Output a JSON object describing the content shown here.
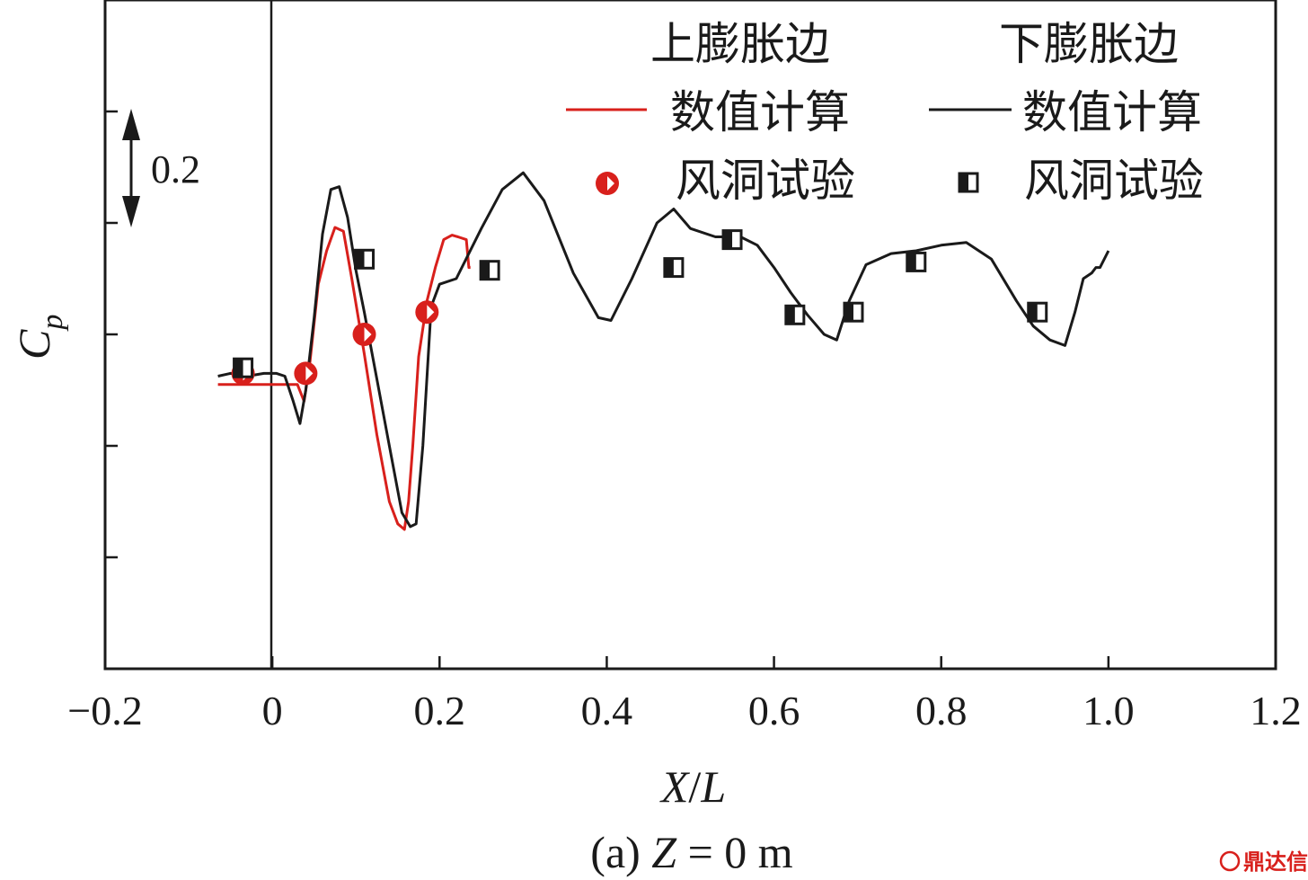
{
  "chart_data": {
    "type": "line",
    "title": "",
    "subtitle_prefix": "(a) ",
    "subtitle_var": "Z",
    "subtitle_suffix": " = 0 m",
    "xlabel_a": "X",
    "xlabel_sep": "/",
    "xlabel_b": "L",
    "ylabel_main": "C",
    "ylabel_sub": "p",
    "xlim": [
      -0.2,
      1.2
    ],
    "ylim": [
      -0.6,
      0.6
    ],
    "x_ticks": [
      -0.2,
      0,
      0.2,
      0.4,
      0.6,
      0.8,
      1.0,
      1.2
    ],
    "x_tick_labels": [
      "−0.2",
      "0",
      "0.2",
      "0.4",
      "0.6",
      "0.8",
      "1.0",
      "1.2"
    ],
    "y_ticks": [
      -0.4,
      -0.2,
      0,
      0.2,
      0.4
    ],
    "scale_bar_label": "0.2",
    "scale_bar_value": 0.2,
    "legend": {
      "upper_title": "上膨胀边",
      "lower_title": "下膨胀边",
      "upper_numeric": "数值计算",
      "lower_numeric": "数值计算",
      "upper_test": "风洞试验",
      "lower_test": "风洞试验"
    },
    "series": [
      {
        "name": "上膨胀边 数值计算",
        "kind": "line",
        "color": "#d8201c",
        "x": [
          -0.065,
          -0.04,
          -0.02,
          0.0,
          0.02,
          0.03,
          0.038,
          0.045,
          0.055,
          0.065,
          0.075,
          0.085,
          0.095,
          0.11,
          0.125,
          0.14,
          0.15,
          0.158,
          0.163,
          0.168,
          0.175,
          0.185,
          0.195,
          0.205,
          0.215,
          0.222,
          0.232,
          0.235,
          0.237
        ],
        "y": [
          -0.09,
          -0.09,
          -0.09,
          -0.09,
          -0.09,
          -0.09,
          -0.12,
          -0.05,
          0.09,
          0.15,
          0.192,
          0.185,
          0.1,
          -0.035,
          -0.18,
          -0.3,
          -0.34,
          -0.35,
          -0.3,
          -0.2,
          -0.04,
          0.06,
          0.12,
          0.17,
          0.178,
          0.175,
          0.17,
          0.12,
          0.12
        ]
      },
      {
        "name": "下膨胀边 数值计算",
        "kind": "line",
        "color": "#1a1a1a",
        "x": [
          -0.065,
          -0.05,
          -0.03,
          -0.01,
          0.005,
          0.015,
          0.025,
          0.033,
          0.04,
          0.05,
          0.06,
          0.07,
          0.08,
          0.09,
          0.1,
          0.11,
          0.125,
          0.14,
          0.155,
          0.165,
          0.172,
          0.18,
          0.19,
          0.2,
          0.22,
          0.25,
          0.275,
          0.3,
          0.325,
          0.36,
          0.39,
          0.405,
          0.43,
          0.46,
          0.48,
          0.5,
          0.53,
          0.56,
          0.58,
          0.6,
          0.62,
          0.64,
          0.66,
          0.675,
          0.69,
          0.71,
          0.74,
          0.77,
          0.8,
          0.83,
          0.86,
          0.89,
          0.91,
          0.93,
          0.948,
          0.96,
          0.97,
          0.98,
          0.985,
          0.99,
          1.0
        ],
        "y": [
          -0.075,
          -0.07,
          -0.075,
          -0.07,
          -0.07,
          -0.075,
          -0.12,
          -0.16,
          -0.1,
          0.03,
          0.18,
          0.26,
          0.265,
          0.21,
          0.115,
          0.04,
          -0.08,
          -0.2,
          -0.32,
          -0.345,
          -0.34,
          -0.2,
          0.05,
          0.09,
          0.1,
          0.19,
          0.26,
          0.29,
          0.24,
          0.11,
          0.03,
          0.025,
          0.1,
          0.2,
          0.225,
          0.19,
          0.175,
          0.175,
          0.16,
          0.12,
          0.075,
          0.035,
          0.0,
          -0.01,
          0.06,
          0.125,
          0.145,
          0.15,
          0.16,
          0.165,
          0.135,
          0.06,
          0.015,
          -0.01,
          -0.02,
          0.04,
          0.1,
          0.11,
          0.12,
          0.12,
          0.15
        ]
      },
      {
        "name": "上膨胀边 风洞试验",
        "kind": "marker",
        "marker": "half-circle",
        "color": "#d8201c",
        "x": [
          -0.035,
          0.04,
          0.11,
          0.185
        ],
        "y": [
          -0.07,
          -0.07,
          0.0,
          0.04
        ]
      },
      {
        "name": "下膨胀边 风洞试验",
        "kind": "marker",
        "marker": "half-square",
        "color": "#1a1a1a",
        "x": [
          -0.035,
          0.11,
          0.26,
          0.48,
          0.55,
          0.625,
          0.695,
          0.77,
          0.915
        ],
        "y": [
          -0.06,
          0.135,
          0.115,
          0.12,
          0.17,
          0.035,
          0.04,
          0.13,
          0.04
        ]
      }
    ]
  },
  "watermark": "鼎达信"
}
